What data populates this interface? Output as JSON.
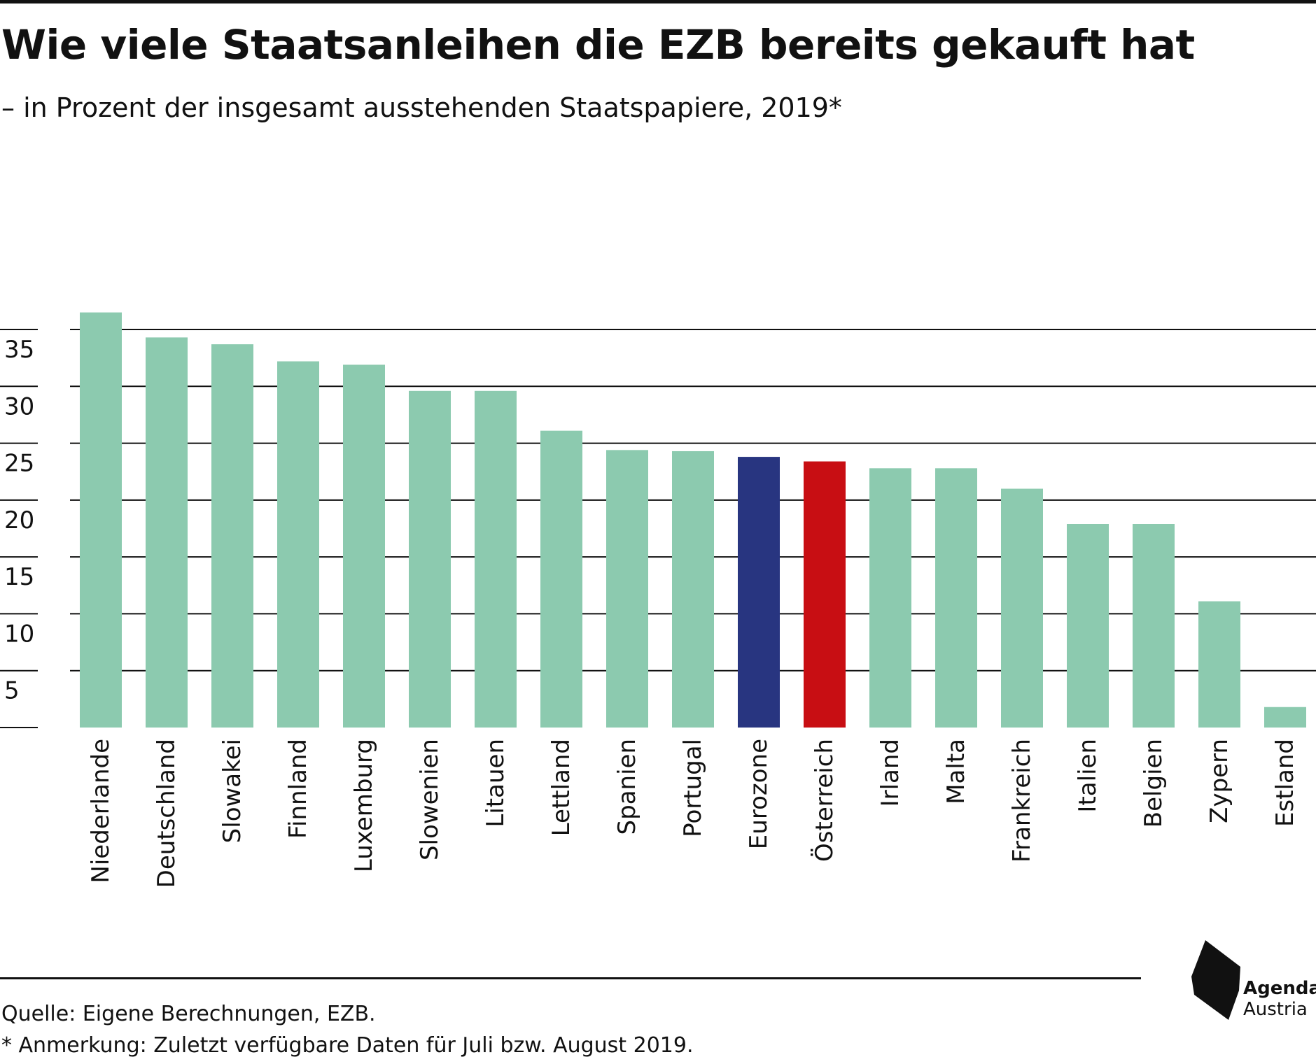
{
  "title": "Wie viele Staatsanleihen die EZB bereits gekauft hat",
  "subtitle": "– in Prozent der insgesamt ausstehenden Staatspapiere, 2019*",
  "source": "Quelle: Eigene Berechnungen, EZB.",
  "note": "* Anmerkung: Zuletzt verfügbare Daten für Juli bzw. August 2019.",
  "logo": {
    "line1": "Agenda",
    "line2": "Austria",
    "icon": "agenda-austria-logo-icon"
  },
  "colors": {
    "default": "#8ccaaf",
    "eurozone": "#283580",
    "oesterreich": "#c80e13",
    "axis": "#111111"
  },
  "chart_data": {
    "type": "bar",
    "title": "Wie viele Staatsanleihen die EZB bereits gekauft hat",
    "subtitle": "– in Prozent der insgesamt ausstehenden Staatspapiere, 2019*",
    "xlabel": "",
    "ylabel": "",
    "ylim": [
      0,
      37.5
    ],
    "yticks": [
      5,
      10,
      15,
      20,
      25,
      30,
      35
    ],
    "grid": true,
    "categories": [
      "Niederlande",
      "Deutschland",
      "Slowakei",
      "Finnland",
      "Luxemburg",
      "Slowenien",
      "Litauen",
      "Lettland",
      "Spanien",
      "Portugal",
      "Eurozone",
      "Österreich",
      "Irland",
      "Malta",
      "Frankreich",
      "Italien",
      "Belgien",
      "Zypern",
      "Estland"
    ],
    "values": [
      36.5,
      34.3,
      33.7,
      32.2,
      31.9,
      29.6,
      29.6,
      26.1,
      24.4,
      24.3,
      23.8,
      23.4,
      22.8,
      22.8,
      21.0,
      17.9,
      17.9,
      11.1,
      1.8
    ],
    "highlight": {
      "Eurozone": "#283580",
      "Österreich": "#c80e13"
    }
  }
}
